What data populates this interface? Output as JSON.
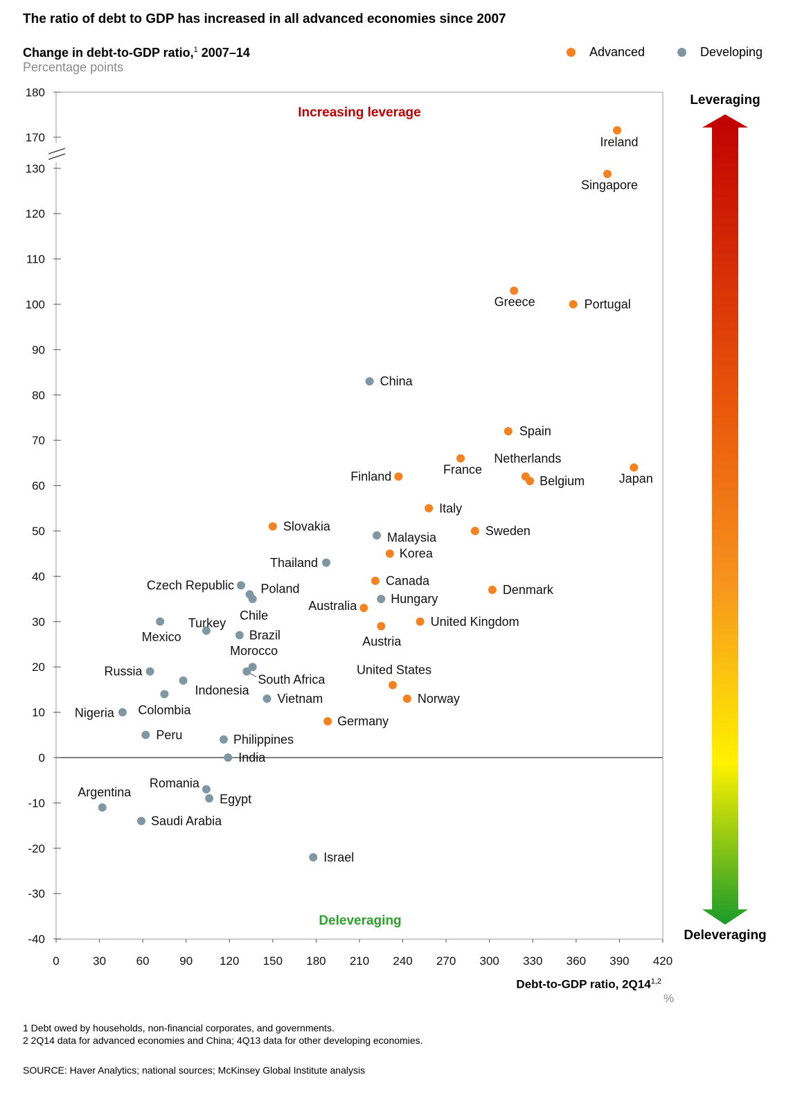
{
  "headline": "The ratio of debt to GDP has increased in all advanced economies since 2007",
  "subtitle": "Change in debt-to-GDP ratio,",
  "subtitle_sup": "1",
  "subtitle_period": " 2007–14",
  "units": "Percentage points",
  "legend": {
    "advanced": "Advanced",
    "developing": "Developing"
  },
  "colors": {
    "advanced": "#f58220",
    "developing": "#7f97a2",
    "increasing_leverage": "#c00000",
    "deleveraging": "#2ea02e"
  },
  "annotations": {
    "increasing_leverage": "Increasing leverage",
    "deleveraging": "Deleveraging"
  },
  "scale": {
    "top": "Leveraging",
    "bottom": "Deleveraging"
  },
  "x_title": "Debt-to-GDP ratio, 2Q14",
  "x_title_sup": "1,2",
  "x_unit": "%",
  "footnotes": [
    "1   Debt owed by households, non-financial corporates, and governments.",
    "2   2Q14 data for advanced economies and China; 4Q13 data for other developing economies."
  ],
  "source": "SOURCE:  Haver Analytics; national sources; McKinsey Global Institute analysis",
  "chart_data": {
    "type": "scatter",
    "title": "Change in debt-to-GDP ratio, 2007–14",
    "xlabel": "Debt-to-GDP ratio, 2Q14 (%)",
    "ylabel": "Percentage points",
    "xlim": [
      0,
      420
    ],
    "ylim": [
      -40,
      180
    ],
    "axis_break": [
      130,
      170
    ],
    "x_ticks": [
      0,
      30,
      60,
      90,
      120,
      150,
      180,
      210,
      240,
      270,
      300,
      330,
      360,
      390,
      420
    ],
    "y_ticks": [
      -40,
      -30,
      -20,
      -10,
      0,
      10,
      20,
      30,
      40,
      50,
      60,
      70,
      80,
      90,
      100,
      110,
      120,
      130,
      170,
      180
    ],
    "series": [
      {
        "name": "Advanced",
        "points": [
          {
            "label": "Ireland",
            "x": 390,
            "y": 172
          },
          {
            "label": "Singapore",
            "x": 382,
            "y": 128
          },
          {
            "label": "Greece",
            "x": 317,
            "y": 103
          },
          {
            "label": "Portugal",
            "x": 358,
            "y": 100
          },
          {
            "label": "Spain",
            "x": 313,
            "y": 72
          },
          {
            "label": "Netherlands",
            "x": 325,
            "y": 62
          },
          {
            "label": "France",
            "x": 280,
            "y": 66
          },
          {
            "label": "Belgium",
            "x": 328,
            "y": 61
          },
          {
            "label": "Japan",
            "x": 400,
            "y": 64
          },
          {
            "label": "Finland",
            "x": 237,
            "y": 62
          },
          {
            "label": "Italy",
            "x": 258,
            "y": 55
          },
          {
            "label": "Sweden",
            "x": 290,
            "y": 50
          },
          {
            "label": "Slovakia",
            "x": 150,
            "y": 51
          },
          {
            "label": "Korea",
            "x": 231,
            "y": 45
          },
          {
            "label": "Canada",
            "x": 221,
            "y": 39
          },
          {
            "label": "Denmark",
            "x": 302,
            "y": 37
          },
          {
            "label": "Australia",
            "x": 213,
            "y": 33
          },
          {
            "label": "United Kingdom",
            "x": 252,
            "y": 30
          },
          {
            "label": "Austria",
            "x": 225,
            "y": 29
          },
          {
            "label": "United States",
            "x": 233,
            "y": 16
          },
          {
            "label": "Norway",
            "x": 243,
            "y": 13
          },
          {
            "label": "Germany",
            "x": 188,
            "y": 8
          }
        ]
      },
      {
        "name": "Developing",
        "points": [
          {
            "label": "China",
            "x": 217,
            "y": 83
          },
          {
            "label": "Malaysia",
            "x": 222,
            "y": 49
          },
          {
            "label": "Thailand",
            "x": 187,
            "y": 43
          },
          {
            "label": "Czech Republic",
            "x": 128,
            "y": 38
          },
          {
            "label": "Poland",
            "x": 134,
            "y": 36
          },
          {
            "label": "Chile",
            "x": 136,
            "y": 35
          },
          {
            "label": "Hungary",
            "x": 225,
            "y": 35
          },
          {
            "label": "Mexico",
            "x": 72,
            "y": 30
          },
          {
            "label": "Turkey",
            "x": 104,
            "y": 28
          },
          {
            "label": "Brazil",
            "x": 127,
            "y": 27
          },
          {
            "label": "Morocco",
            "x": 136,
            "y": 20
          },
          {
            "label": "South Africa",
            "x": 132,
            "y": 19
          },
          {
            "label": "Russia",
            "x": 65,
            "y": 19
          },
          {
            "label": "Indonesia",
            "x": 88,
            "y": 17
          },
          {
            "label": "Colombia",
            "x": 75,
            "y": 14
          },
          {
            "label": "Vietnam",
            "x": 146,
            "y": 13
          },
          {
            "label": "Nigeria",
            "x": 46,
            "y": 10
          },
          {
            "label": "Peru",
            "x": 62,
            "y": 5
          },
          {
            "label": "Philippines",
            "x": 116,
            "y": 4
          },
          {
            "label": "India",
            "x": 119,
            "y": 0
          },
          {
            "label": "Romania",
            "x": 104,
            "y": -7
          },
          {
            "label": "Egypt",
            "x": 106,
            "y": -9
          },
          {
            "label": "Argentina",
            "x": 32,
            "y": -11
          },
          {
            "label": "Saudi Arabia",
            "x": 59,
            "y": -14
          },
          {
            "label": "Israel",
            "x": 178,
            "y": -22
          }
        ]
      }
    ]
  }
}
